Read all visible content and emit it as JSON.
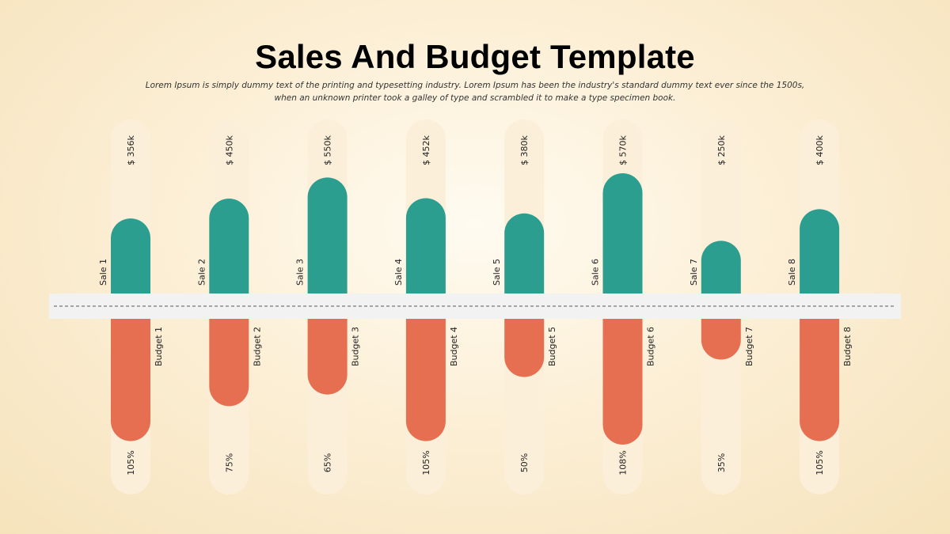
{
  "title": "Sales And Budget Template",
  "subtitle": "Lorem Ipsum is simply dummy text of the printing and typesetting industry. Lorem Ipsum has been the industry's standard dummy text ever since the 1500s, when an unknown printer took a galley of type and scrambled it to make a type specimen book.",
  "colors": {
    "sales": "#2b9e8f",
    "budget": "#e76f51",
    "track": "#fcefd9",
    "band": "#f2f2f2",
    "dash": "#555555"
  },
  "chart_data": {
    "type": "bar",
    "categories": [
      "1",
      "2",
      "3",
      "4",
      "5",
      "6",
      "7",
      "8"
    ],
    "series": [
      {
        "name": "Sale",
        "labels": [
          "Sale 1",
          "Sale 2",
          "Sale 3",
          "Sale 4",
          "Sale 5",
          "Sale 6",
          "Sale 7",
          "Sale 8"
        ],
        "values": [
          356,
          450,
          550,
          452,
          380,
          570,
          250,
          400
        ],
        "value_labels": [
          "$ 356k",
          "$ 450k",
          "$ 550k",
          "$ 452k",
          "$ 380k",
          "$ 570k",
          "$ 250k",
          "$ 400k"
        ]
      },
      {
        "name": "Budget",
        "labels": [
          "Budget 1",
          "Budget 2",
          "Budget 3",
          "Budget 4",
          "Budget 5",
          "Budget 6",
          "Budget 7",
          "Budget 8"
        ],
        "values": [
          105,
          75,
          65,
          105,
          50,
          108,
          35,
          105
        ],
        "value_labels": [
          "105%",
          "75%",
          "65%",
          "105%",
          "50%",
          "108%",
          "35%",
          "105%"
        ]
      }
    ],
    "ylim_sale": [
      0,
      600
    ],
    "ylim_budget": [
      0,
      110
    ]
  }
}
